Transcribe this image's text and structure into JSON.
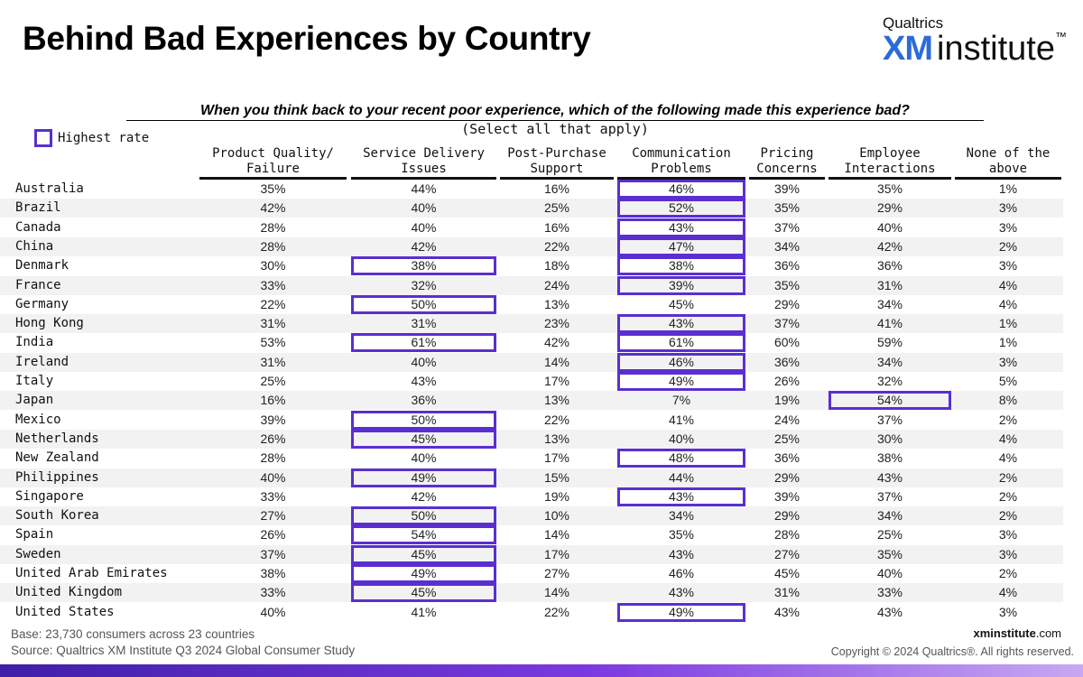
{
  "title": "Behind Bad Experiences by Country",
  "logo": {
    "top": "Qualtrics",
    "xm": "XM",
    "institute": "institute",
    "tm": "™"
  },
  "question": "When you think back to your recent poor experience, which of the following made this experience bad?",
  "subquestion": "(Select all that apply)",
  "legend": {
    "label": "Highest rate",
    "color": "#5a2fd1"
  },
  "footer": {
    "base": "Base: 23,730 consumers across 23 countries",
    "source": "Source: Qualtrics XM Institute Q3 2024 Global Consumer Study",
    "site_bold": "xminstitute",
    "site_rest": ".com",
    "copyright": "Copyright © 2024 Qualtrics®. All rights reserved."
  },
  "colors": {
    "highlight": "#5a2fd1",
    "row_stripe": "#f2f2f2",
    "bar_start": "#3f1fa8",
    "bar_end": "#c8a8f2"
  },
  "chart_data": {
    "type": "table",
    "columns": [
      "Product Quality/\nFailure",
      "Service Delivery\nIssues",
      "Post-Purchase\nSupport",
      "Communication\nProblems",
      "Pricing\nConcerns",
      "Employee\nInteractions",
      "None of the\nabove"
    ],
    "rows": [
      {
        "country": "Australia",
        "values": [
          "35%",
          "44%",
          "16%",
          "46%",
          "39%",
          "35%",
          "1%"
        ],
        "highest": [
          3
        ]
      },
      {
        "country": "Brazil",
        "values": [
          "42%",
          "40%",
          "25%",
          "52%",
          "35%",
          "29%",
          "3%"
        ],
        "highest": [
          3
        ]
      },
      {
        "country": "Canada",
        "values": [
          "28%",
          "40%",
          "16%",
          "43%",
          "37%",
          "40%",
          "3%"
        ],
        "highest": [
          3
        ]
      },
      {
        "country": "China",
        "values": [
          "28%",
          "42%",
          "22%",
          "47%",
          "34%",
          "42%",
          "2%"
        ],
        "highest": [
          3
        ]
      },
      {
        "country": "Denmark",
        "values": [
          "30%",
          "38%",
          "18%",
          "38%",
          "36%",
          "36%",
          "3%"
        ],
        "highest": [
          1,
          3
        ]
      },
      {
        "country": "France",
        "values": [
          "33%",
          "32%",
          "24%",
          "39%",
          "35%",
          "31%",
          "4%"
        ],
        "highest": [
          3
        ]
      },
      {
        "country": "Germany",
        "values": [
          "22%",
          "50%",
          "13%",
          "45%",
          "29%",
          "34%",
          "4%"
        ],
        "highest": [
          1
        ]
      },
      {
        "country": "Hong Kong",
        "values": [
          "31%",
          "31%",
          "23%",
          "43%",
          "37%",
          "41%",
          "1%"
        ],
        "highest": [
          3
        ]
      },
      {
        "country": "India",
        "values": [
          "53%",
          "61%",
          "42%",
          "61%",
          "60%",
          "59%",
          "1%"
        ],
        "highest": [
          1,
          3
        ]
      },
      {
        "country": "Ireland",
        "values": [
          "31%",
          "40%",
          "14%",
          "46%",
          "36%",
          "34%",
          "3%"
        ],
        "highest": [
          3
        ]
      },
      {
        "country": "Italy",
        "values": [
          "25%",
          "43%",
          "17%",
          "49%",
          "26%",
          "32%",
          "5%"
        ],
        "highest": [
          3
        ]
      },
      {
        "country": "Japan",
        "values": [
          "16%",
          "36%",
          "13%",
          "7%",
          "19%",
          "54%",
          "8%"
        ],
        "highest": [
          5
        ]
      },
      {
        "country": "Mexico",
        "values": [
          "39%",
          "50%",
          "22%",
          "41%",
          "24%",
          "37%",
          "2%"
        ],
        "highest": [
          1
        ]
      },
      {
        "country": "Netherlands",
        "values": [
          "26%",
          "45%",
          "13%",
          "40%",
          "25%",
          "30%",
          "4%"
        ],
        "highest": [
          1
        ]
      },
      {
        "country": "New Zealand",
        "values": [
          "28%",
          "40%",
          "17%",
          "48%",
          "36%",
          "38%",
          "4%"
        ],
        "highest": [
          3
        ]
      },
      {
        "country": "Philippines",
        "values": [
          "40%",
          "49%",
          "15%",
          "44%",
          "29%",
          "43%",
          "2%"
        ],
        "highest": [
          1
        ]
      },
      {
        "country": "Singapore",
        "values": [
          "33%",
          "42%",
          "19%",
          "43%",
          "39%",
          "37%",
          "2%"
        ],
        "highest": [
          3
        ]
      },
      {
        "country": "South Korea",
        "values": [
          "27%",
          "50%",
          "10%",
          "34%",
          "29%",
          "34%",
          "2%"
        ],
        "highest": [
          1
        ]
      },
      {
        "country": "Spain",
        "values": [
          "26%",
          "54%",
          "14%",
          "35%",
          "28%",
          "25%",
          "3%"
        ],
        "highest": [
          1
        ]
      },
      {
        "country": "Sweden",
        "values": [
          "37%",
          "45%",
          "17%",
          "43%",
          "27%",
          "35%",
          "3%"
        ],
        "highest": [
          1
        ]
      },
      {
        "country": "United Arab Emirates",
        "values": [
          "38%",
          "49%",
          "27%",
          "46%",
          "45%",
          "40%",
          "2%"
        ],
        "highest": [
          1
        ]
      },
      {
        "country": "United Kingdom",
        "values": [
          "33%",
          "45%",
          "14%",
          "43%",
          "31%",
          "33%",
          "4%"
        ],
        "highest": [
          1
        ]
      },
      {
        "country": "United States",
        "values": [
          "40%",
          "41%",
          "22%",
          "49%",
          "43%",
          "43%",
          "3%"
        ],
        "highest": [
          3
        ]
      }
    ]
  }
}
